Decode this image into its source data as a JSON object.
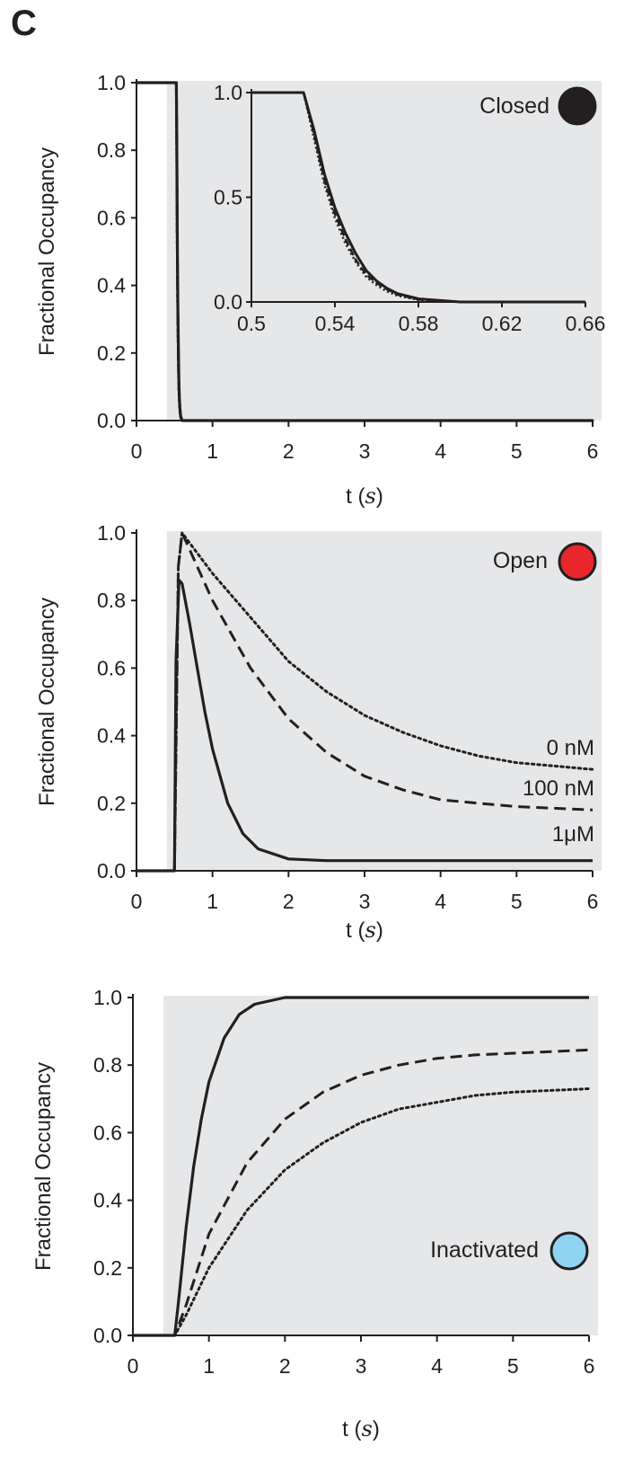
{
  "panel_label": "C",
  "chart_data": [
    {
      "type": "line",
      "state": "Closed",
      "legend_label": "Closed",
      "marker_color": "#231f20",
      "xlabel_t": "t",
      "xlabel_unit": "s",
      "ylabel": "Fractional Occupancy",
      "xlim": [
        0,
        6
      ],
      "ylim": [
        0,
        1
      ],
      "xticks": [
        "0",
        "1",
        "2",
        "3",
        "4",
        "5",
        "6"
      ],
      "yticks": [
        "0.0",
        "0.2",
        "0.4",
        "0.6",
        "0.8",
        "1.0"
      ],
      "shaded_region_start": 0.4,
      "series": [
        {
          "style": "dotted",
          "x": [
            0,
            0.5,
            0.525,
            0.53,
            0.535,
            0.54,
            0.545,
            0.55,
            0.555,
            0.56,
            0.565,
            0.57,
            0.58,
            0.6,
            6
          ],
          "y": [
            1,
            1,
            1,
            0.78,
            0.56,
            0.4,
            0.28,
            0.19,
            0.12,
            0.08,
            0.05,
            0.03,
            0.01,
            0,
            0
          ]
        },
        {
          "style": "dashed",
          "x": [
            0,
            0.5,
            0.525,
            0.53,
            0.535,
            0.54,
            0.545,
            0.55,
            0.555,
            0.56,
            0.565,
            0.57,
            0.58,
            0.6,
            6
          ],
          "y": [
            1,
            1,
            1,
            0.8,
            0.58,
            0.42,
            0.3,
            0.2,
            0.13,
            0.09,
            0.06,
            0.035,
            0.012,
            0,
            0
          ]
        },
        {
          "style": "solid",
          "x": [
            0,
            0.5,
            0.525,
            0.53,
            0.535,
            0.54,
            0.545,
            0.55,
            0.555,
            0.56,
            0.565,
            0.57,
            0.58,
            0.6,
            6
          ],
          "y": [
            1,
            1,
            1,
            0.82,
            0.61,
            0.45,
            0.33,
            0.23,
            0.15,
            0.1,
            0.065,
            0.04,
            0.015,
            0,
            0
          ]
        }
      ],
      "inset": {
        "xlim": [
          0.5,
          0.66
        ],
        "ylim": [
          0,
          1
        ],
        "xticks": [
          "0.5",
          "0.54",
          "0.58",
          "0.62",
          "0.66"
        ],
        "yticks": [
          "0.0",
          "0.5",
          "1.0"
        ]
      }
    },
    {
      "type": "line",
      "state": "Open",
      "legend_label": "Open",
      "marker_color": "#e8262b",
      "xlabel_t": "t",
      "xlabel_unit": "s",
      "ylabel": "Fractional Occupancy",
      "xlim": [
        0,
        6
      ],
      "ylim": [
        0,
        1
      ],
      "xticks": [
        "0",
        "1",
        "2",
        "3",
        "4",
        "5",
        "6"
      ],
      "yticks": [
        "0.0",
        "0.2",
        "0.4",
        "0.6",
        "0.8",
        "1.0"
      ],
      "shaded_region_start": 0.4,
      "series": [
        {
          "name": "0 nM",
          "style": "dotted",
          "x": [
            0,
            0.5,
            0.55,
            0.6,
            1,
            1.5,
            2,
            2.5,
            3,
            3.5,
            4,
            4.5,
            5,
            5.5,
            6
          ],
          "y": [
            0,
            0,
            0.9,
            1.0,
            0.88,
            0.75,
            0.62,
            0.53,
            0.46,
            0.41,
            0.37,
            0.34,
            0.32,
            0.31,
            0.3
          ]
        },
        {
          "name": "100 nM",
          "style": "dashed",
          "x": [
            0,
            0.5,
            0.55,
            0.6,
            1,
            1.5,
            2,
            2.5,
            3,
            3.5,
            4,
            4.5,
            5,
            5.5,
            6
          ],
          "y": [
            0,
            0,
            0.9,
            1.0,
            0.8,
            0.6,
            0.45,
            0.35,
            0.28,
            0.24,
            0.21,
            0.2,
            0.19,
            0.185,
            0.18
          ]
        },
        {
          "name": "1μM",
          "style": "solid",
          "x": [
            0,
            0.5,
            0.52,
            0.56,
            0.6,
            0.7,
            0.8,
            0.9,
            1.0,
            1.2,
            1.4,
            1.6,
            2.0,
            2.5,
            3,
            4,
            5,
            6
          ],
          "y": [
            0,
            0,
            0.62,
            0.86,
            0.85,
            0.73,
            0.6,
            0.47,
            0.36,
            0.2,
            0.11,
            0.065,
            0.035,
            0.03,
            0.03,
            0.03,
            0.03,
            0.03
          ]
        }
      ]
    },
    {
      "type": "line",
      "state": "Inactivated",
      "legend_label": "Inactivated",
      "marker_color": "#8fd3f1",
      "xlabel_t": "t",
      "xlabel_unit": "s",
      "ylabel": "Fractional Occupancy",
      "xlim": [
        0,
        6
      ],
      "ylim": [
        0,
        1
      ],
      "xticks": [
        "0",
        "1",
        "2",
        "3",
        "4",
        "5",
        "6"
      ],
      "yticks": [
        "0.0",
        "0.2",
        "0.4",
        "0.6",
        "0.8",
        "1.0"
      ],
      "shaded_region_start": 0.4,
      "series": [
        {
          "style": "solid",
          "x": [
            0,
            0.55,
            0.6,
            0.7,
            0.8,
            0.9,
            1.0,
            1.2,
            1.4,
            1.6,
            2,
            2.5,
            3,
            4,
            5,
            6
          ],
          "y": [
            0,
            0,
            0.1,
            0.32,
            0.5,
            0.64,
            0.75,
            0.88,
            0.95,
            0.98,
            1.0,
            1.0,
            1.0,
            1.0,
            1.0,
            1.0
          ]
        },
        {
          "style": "dashed",
          "x": [
            0,
            0.55,
            0.7,
            1.0,
            1.5,
            2,
            2.5,
            3,
            3.5,
            4,
            4.5,
            5,
            5.5,
            6
          ],
          "y": [
            0,
            0,
            0.09,
            0.3,
            0.51,
            0.64,
            0.72,
            0.77,
            0.8,
            0.82,
            0.83,
            0.835,
            0.84,
            0.845
          ]
        },
        {
          "style": "dotted",
          "x": [
            0,
            0.55,
            0.7,
            1.0,
            1.5,
            2,
            2.5,
            3,
            3.5,
            4,
            4.5,
            5,
            5.5,
            6
          ],
          "y": [
            0,
            0,
            0.06,
            0.2,
            0.37,
            0.49,
            0.57,
            0.63,
            0.67,
            0.69,
            0.71,
            0.72,
            0.725,
            0.73
          ]
        }
      ]
    }
  ]
}
